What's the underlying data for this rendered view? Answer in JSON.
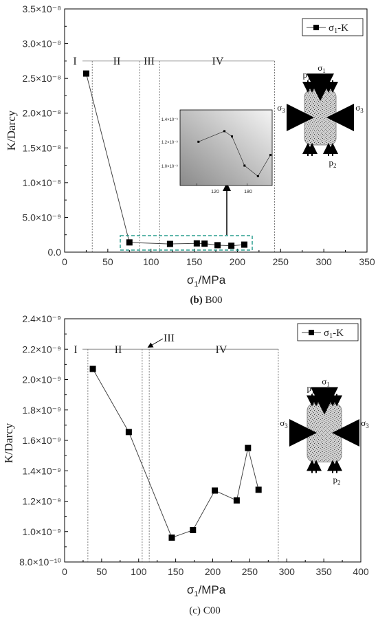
{
  "chart_data": [
    {
      "panel": "b",
      "type": "line",
      "caption_letter": "(b)",
      "caption_text": " B00",
      "xlabel": "σ1/MPa",
      "ylabel": "K/Darcy",
      "xlim": [
        0,
        350
      ],
      "ylim": [
        0,
        3.5e-08
      ],
      "x_ticks": [
        "0",
        "50",
        "100",
        "150",
        "200",
        "250",
        "300",
        "350"
      ],
      "y_ticks": [
        "0.0",
        "5.0×10⁻⁹",
        "1.0×10⁻⁸",
        "1.5×10⁻⁸",
        "2.0×10⁻⁸",
        "2.5×10⁻⁸",
        "3.0×10⁻⁸",
        "3.5×10⁻⁸"
      ],
      "series": [
        {
          "name": "σ1-K",
          "x": [
            25,
            75,
            122,
            153,
            162,
            177,
            193,
            208
          ],
          "y": [
            2.57e-08,
            1.4e-09,
            1.18e-09,
            1.26e-09,
            1.22e-09,
            1e-09,
            9.2e-10,
            1.08e-09
          ]
        }
      ],
      "stages": [
        "I",
        "II",
        "III",
        "IV"
      ],
      "stage_boundaries": [
        32,
        87,
        110,
        243
      ],
      "stage_level": 2.75e-08,
      "legend_position": "top-right",
      "inset": {
        "x_ticks": [
          "120",
          "180"
        ],
        "y_ticks": [
          "1.4×10⁻⁹",
          "1.2×10⁻⁹",
          "1.0×10⁻⁹"
        ],
        "xlim": [
          100,
          210
        ],
        "ylim": [
          8.5e-10,
          1.42e-09
        ]
      }
    },
    {
      "panel": "c",
      "type": "line",
      "caption_letter": "(c)",
      "caption_text": " C00",
      "xlabel": "σ1/MPa",
      "ylabel": "K/Darcy",
      "xlim": [
        0,
        420
      ],
      "ylim": [
        8e-10,
        2.4e-09
      ],
      "x_ticks": [
        "0",
        "50",
        "100",
        "150",
        "200",
        "250",
        "300",
        "350",
        "400"
      ],
      "y_ticks": [
        "8.0×10⁻¹⁰",
        "1.0×10⁻⁹",
        "1.2×10⁻⁹",
        "1.4×10⁻⁹",
        "1.6×10⁻⁹",
        "1.8×10⁻⁹",
        "2.0×10⁻⁹",
        "2.2×10⁻⁹",
        "2.4×10⁻⁹"
      ],
      "series": [
        {
          "name": "σ1-K",
          "x": [
            40,
            91,
            152,
            182,
            213,
            244,
            260,
            275
          ],
          "y": [
            2.07e-09,
            1.655e-09,
            9.6e-10,
            1.01e-09,
            1.27e-09,
            1.205e-09,
            1.55e-09,
            1.275e-09
          ]
        }
      ],
      "stages": [
        "I",
        "II",
        "III",
        "IV"
      ],
      "stage_boundaries": [
        33,
        110,
        120,
        303
      ],
      "stage_level": 2.2e-09,
      "legend_position": "top-right"
    }
  ],
  "diagram_labels": {
    "sigma1": "σ1",
    "sigma3": "σ3",
    "p1": "p1",
    "p2": "p2"
  },
  "colors": {
    "marker": "#000000",
    "line": "#444444",
    "highlight_box": "#2a9d8f"
  }
}
